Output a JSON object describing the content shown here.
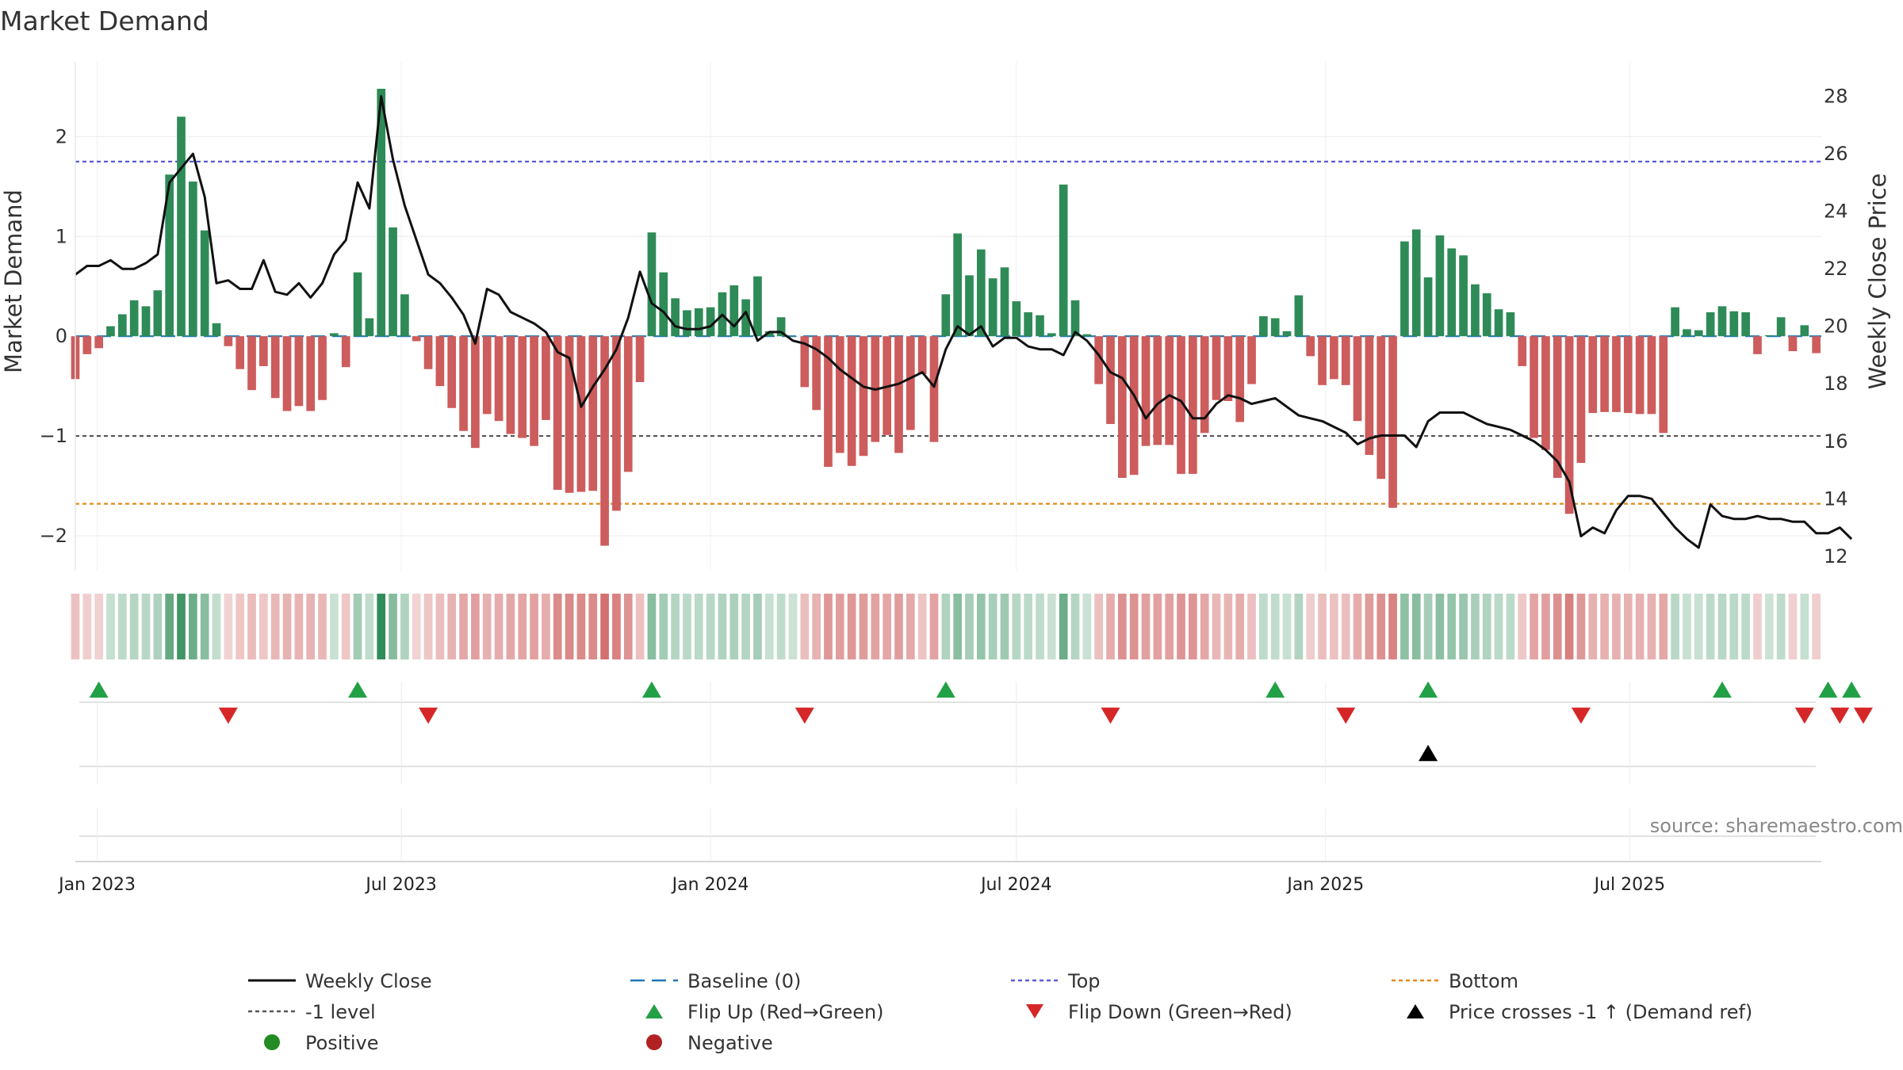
{
  "title": "Market Demand",
  "source": "source: sharemaestro.com",
  "colors": {
    "positive": "#2e8b57",
    "negative": "#cd5c5c",
    "price": "#111111",
    "baseline": "#1f77b4",
    "top": "#5b5bd6",
    "bottom": "#e08a1e",
    "minus_one": "#555555",
    "flip_up": "#22a045",
    "flip_down": "#d62728",
    "cross": "#000000",
    "positive_dot": "#228b22",
    "negative_dot": "#b22222"
  },
  "chart_data": {
    "type": "bar",
    "ylabel": "Market Demand",
    "y2label": "Weekly Close Price",
    "ylim": [
      -2.35,
      2.75
    ],
    "y2lim": [
      11.5,
      29.2
    ],
    "yticks": [
      2,
      1,
      0,
      -1,
      -2
    ],
    "ytick_labels": [
      "2",
      "1",
      "0",
      "−1",
      "−2"
    ],
    "y2ticks": [
      28,
      26,
      24,
      22,
      20,
      18,
      16,
      14,
      12
    ],
    "x_range": [
      "2022-12-19",
      "2025-10-23"
    ],
    "date_ticks": [
      {
        "date": "2023-01-01",
        "label": "Jan 2023"
      },
      {
        "date": "2023-07-01",
        "label": "Jul 2023"
      },
      {
        "date": "2024-01-01",
        "label": "Jan 2024"
      },
      {
        "date": "2024-07-01",
        "label": "Jul 2024"
      },
      {
        "date": "2025-01-01",
        "label": "Jan 2025"
      },
      {
        "date": "2025-07-01",
        "label": "Jul 2025"
      }
    ],
    "reference_lines": {
      "baseline": 0,
      "top": 1.75,
      "bottom": -1.68,
      "minus_one": -1
    },
    "start_date": "2022-12-19",
    "demand": [
      -0.43,
      -0.18,
      -0.12,
      0.1,
      0.22,
      0.36,
      0.3,
      0.46,
      1.62,
      2.2,
      1.55,
      1.06,
      0.13,
      -0.1,
      -0.33,
      -0.54,
      -0.3,
      -0.62,
      -0.75,
      -0.7,
      -0.75,
      -0.64,
      0.03,
      -0.31,
      0.64,
      0.18,
      2.48,
      1.09,
      0.42,
      -0.05,
      -0.33,
      -0.5,
      -0.72,
      -0.95,
      -1.12,
      -0.78,
      -0.85,
      -0.98,
      -1.02,
      -1.1,
      -0.84,
      -1.54,
      -1.57,
      -1.56,
      -1.55,
      -2.1,
      -1.75,
      -1.36,
      -0.46,
      1.04,
      0.64,
      0.38,
      0.26,
      0.28,
      0.29,
      0.44,
      0.51,
      0.37,
      0.6,
      0.05,
      0.19,
      0.0,
      -0.51,
      -0.74,
      -1.31,
      -1.17,
      -1.3,
      -1.2,
      -1.06,
      -0.99,
      -1.17,
      -0.94,
      -0.38,
      -1.06,
      0.42,
      1.03,
      0.61,
      0.87,
      0.58,
      0.69,
      0.35,
      0.24,
      0.21,
      0.03,
      1.52,
      0.36,
      0.02,
      -0.48,
      -0.88,
      -1.42,
      -1.39,
      -1.1,
      -1.09,
      -1.09,
      -1.38,
      -1.38,
      -0.97,
      -0.64,
      -0.65,
      -0.86,
      -0.48,
      0.2,
      0.18,
      0.05,
      0.41,
      -0.2,
      -0.49,
      -0.43,
      -0.49,
      -0.85,
      -1.19,
      -1.43,
      -1.72,
      0.95,
      1.07,
      0.59,
      1.01,
      0.88,
      0.81,
      0.52,
      0.43,
      0.27,
      0.24,
      -0.3,
      -1.02,
      -1.14,
      -1.42,
      -1.78,
      -1.27,
      -0.77,
      -0.76,
      -0.76,
      -0.77,
      -0.78,
      -0.78,
      -0.97,
      0.29,
      0.07,
      0.06,
      0.24,
      0.3,
      0.25,
      0.24,
      -0.18,
      0.01,
      0.19,
      -0.15,
      0.11,
      -0.17
    ],
    "price": [
      21.8,
      22.1,
      22.1,
      22.3,
      22.0,
      22.0,
      22.2,
      22.5,
      25.0,
      25.5,
      26.0,
      24.5,
      21.5,
      21.6,
      21.3,
      21.3,
      22.3,
      21.2,
      21.1,
      21.5,
      21.0,
      21.5,
      22.5,
      23.0,
      25.0,
      24.1,
      28.0,
      25.8,
      24.2,
      23.0,
      21.8,
      21.5,
      21.0,
      20.4,
      19.4,
      21.3,
      21.1,
      20.5,
      20.3,
      20.1,
      19.8,
      19.1,
      18.9,
      17.2,
      17.9,
      18.5,
      19.2,
      20.3,
      21.9,
      20.8,
      20.5,
      20.0,
      19.9,
      19.9,
      20.0,
      20.4,
      20.0,
      20.5,
      19.5,
      19.8,
      19.8,
      19.5,
      19.4,
      19.2,
      18.9,
      18.5,
      18.2,
      17.9,
      17.8,
      17.9,
      18.0,
      18.2,
      18.4,
      17.9,
      19.2,
      20.0,
      19.7,
      20.0,
      19.3,
      19.6,
      19.6,
      19.3,
      19.2,
      19.2,
      19.0,
      19.8,
      19.5,
      19.0,
      18.4,
      18.2,
      17.6,
      16.8,
      17.3,
      17.6,
      17.4,
      16.8,
      16.8,
      17.3,
      17.6,
      17.5,
      17.3,
      17.4,
      17.5,
      17.2,
      16.9,
      16.8,
      16.7,
      16.5,
      16.3,
      15.9,
      16.1,
      16.2,
      16.2,
      16.2,
      15.8,
      16.7,
      17.0,
      17.0,
      17.0,
      16.8,
      16.6,
      16.5,
      16.4,
      16.2,
      16.0,
      15.7,
      15.3,
      14.6,
      12.7,
      13.0,
      12.8,
      13.6,
      14.1,
      14.1,
      14.0,
      13.5,
      13.0,
      12.6,
      12.3,
      13.8,
      13.4,
      13.3,
      13.3,
      13.4,
      13.3,
      13.3,
      13.2,
      13.2,
      12.8,
      12.8,
      13.0,
      12.6
    ],
    "flip_up_weeks": [
      2,
      24,
      49,
      74,
      102,
      115,
      140,
      149,
      151
    ],
    "flip_down_weeks": [
      13,
      30,
      62,
      88,
      108,
      128,
      147,
      150,
      152
    ],
    "price_cross_weeks": [
      115
    ]
  },
  "legend": [
    {
      "key": "weekly_close",
      "label": "Weekly Close",
      "symbol": "line"
    },
    {
      "key": "baseline",
      "label": "Baseline (0)",
      "symbol": "dash"
    },
    {
      "key": "top",
      "label": "Top",
      "symbol": "dot"
    },
    {
      "key": "bottom",
      "label": "Bottom",
      "symbol": "dot"
    },
    {
      "key": "minus_one",
      "label": "-1 level",
      "symbol": "dot"
    },
    {
      "key": "flip_up",
      "label": "Flip Up (Red→Green)",
      "symbol": "tri-up"
    },
    {
      "key": "flip_down",
      "label": "Flip Down (Green→Red)",
      "symbol": "tri-down"
    },
    {
      "key": "cross",
      "label": "Price crosses -1 ↑ (Demand ref)",
      "symbol": "tri-up"
    },
    {
      "key": "positive",
      "label": "Positive",
      "symbol": "circle"
    },
    {
      "key": "negative",
      "label": "Negative",
      "symbol": "circle"
    }
  ]
}
